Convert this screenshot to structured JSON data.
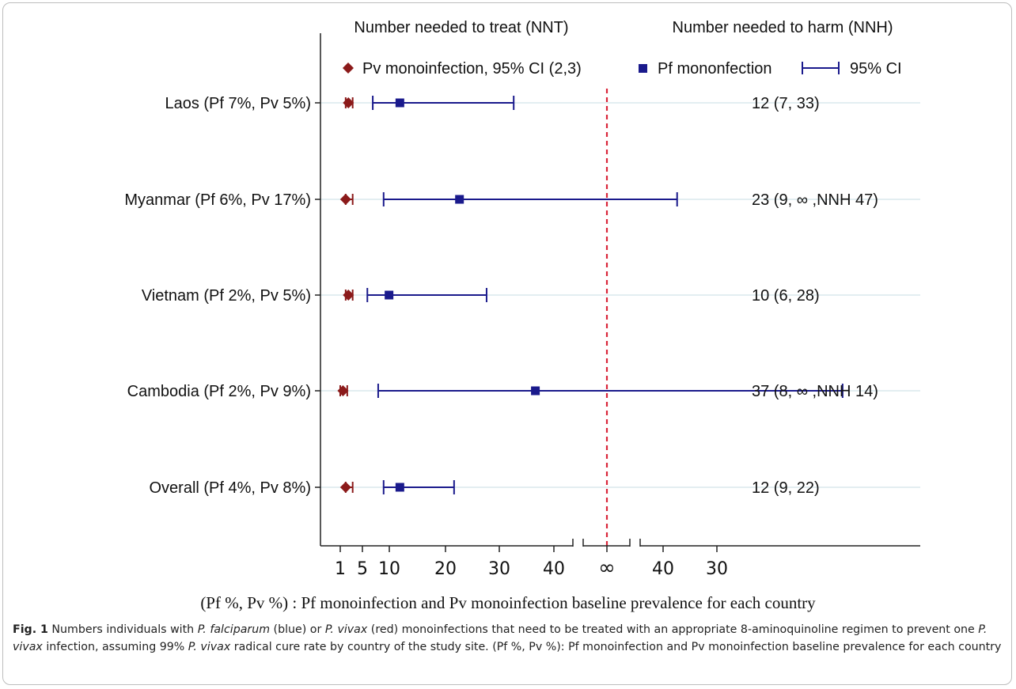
{
  "chart_data": {
    "type": "forest",
    "headers": {
      "left": "Number needed to treat (NNT)",
      "right": "Number needed to harm (NNH)"
    },
    "legend": {
      "placement": "top",
      "pv_label": "Pv monoinfection, 95% CI (2,3)",
      "pf_label": "Pf mononfection",
      "ci_label": "95% CI"
    },
    "colors": {
      "pv": "#8b1a1a",
      "pf": "#1a1a8c",
      "reference_line": "#d9263a",
      "row_grid": "#e3eef1"
    },
    "x_ticks": [
      "1",
      "5",
      "10",
      "20",
      "30",
      "40",
      "∞",
      "40",
      "30"
    ],
    "x_axis_note": "NNT scale 0–44 (left segment), ∞ in middle, NNH scale 44–30 (right segment)",
    "rows": [
      {
        "label": "Laos (Pf 7%, Pv 5%)",
        "pv": {
          "nnt": 2.5,
          "ci": [
            2,
            3
          ]
        },
        "pf": {
          "estimate": 12,
          "ci_lower_nnt": 7,
          "ci_upper_nnt": 33
        },
        "text": "12 (7, 33)"
      },
      {
        "label": "Myanmar (Pf 6%, Pv 17%)",
        "pv": {
          "nnt": 2,
          "ci": [
            2,
            3
          ]
        },
        "pf": {
          "estimate": 23,
          "ci_lower_nnt": 9,
          "ci_upper_nnh": 47
        },
        "text": "23 (9, ∞ ,NNH 47)"
      },
      {
        "label": "Vietnam (Pf 2%, Pv 5%)",
        "pv": {
          "nnt": 2.5,
          "ci": [
            2,
            3
          ]
        },
        "pf": {
          "estimate": 10,
          "ci_lower_nnt": 6,
          "ci_upper_nnt": 28
        },
        "text": "10 (6, 28)"
      },
      {
        "label": "Cambodia (Pf 2%, Pv 9%)",
        "pv": {
          "nnt": 1.5,
          "ci": [
            1,
            2
          ]
        },
        "pf": {
          "estimate": 37,
          "ci_lower_nnt": 8,
          "ci_upper_nnh": 14
        },
        "text": "37 (8, ∞ ,NNH 14)"
      },
      {
        "label": "Overall (Pf 4%, Pv 8%)",
        "pv": {
          "nnt": 2,
          "ci": [
            2,
            3
          ]
        },
        "pf": {
          "estimate": 12,
          "ci_lower_nnt": 9,
          "ci_upper_nnt": 22
        },
        "text": "12 (9, 22)"
      }
    ]
  },
  "subtitle": "(Pf %, Pv %) : Pf monoinfection and Pv monoinfection baseline prevalence for each country",
  "caption": {
    "fig_label": "Fig. 1",
    "segments": [
      {
        "t": "  Numbers individuals with ",
        "i": false
      },
      {
        "t": "P. falciparum",
        "i": true
      },
      {
        "t": " (blue) or ",
        "i": false
      },
      {
        "t": "P. vivax",
        "i": true
      },
      {
        "t": " (red) monoinfections that need to be treated with an appropriate 8-aminoquinoline regimen to prevent one ",
        "i": false
      },
      {
        "t": "P. vivax",
        "i": true
      },
      {
        "t": " infection, assuming 99% ",
        "i": false
      },
      {
        "t": "P. vivax",
        "i": true
      },
      {
        "t": " radical cure rate by country of the study site. (Pf %, Pv %): Pf monoinfection and Pv monoinfection baseline prevalence for each country",
        "i": false
      }
    ]
  }
}
